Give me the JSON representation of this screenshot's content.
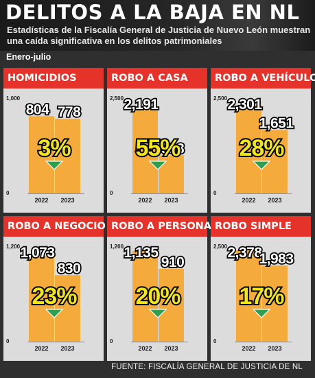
{
  "header": {
    "title": "DELITOS A LA BAJA EN NL",
    "subtitle": "Estadísticas de la Fiscalía General de Justicia de Nuevo León muestran una caída significativa en los delitos patrimoniales",
    "period": "Enero-julio"
  },
  "source": "FUENTE: FISCALÍA GENERAL DE JUSTICIA DE NL",
  "colors": {
    "bar": "#f5ab3c",
    "panel_header": "#e5322b",
    "arrow": "#2e9e4f",
    "panel_bg": "#dcdcdc"
  },
  "chart_data": [
    {
      "type": "bar",
      "title": "HOMICIDIOS",
      "categories": [
        "2022",
        "2023"
      ],
      "values": [
        804,
        778
      ],
      "value_labels": [
        "804",
        "778"
      ],
      "ylim": [
        0,
        1000
      ],
      "yticks": [
        "0",
        "1,000"
      ],
      "change_label": "3%",
      "change_direction": "down"
    },
    {
      "type": "bar",
      "title": "ROBO A CASA",
      "categories": [
        "2022",
        "2023"
      ],
      "values": [
        2191,
        993
      ],
      "value_labels": [
        "2,191",
        "993"
      ],
      "ylim": [
        0,
        2500
      ],
      "yticks": [
        "0",
        "2,500"
      ],
      "change_label": "55%",
      "change_direction": "down"
    },
    {
      "type": "bar",
      "title": "ROBO A VEHÍCULO",
      "categories": [
        "2022",
        "2023"
      ],
      "values": [
        2301,
        1651
      ],
      "value_labels": [
        "2,301",
        "1,651"
      ],
      "ylim": [
        0,
        2500
      ],
      "yticks": [
        "0",
        "2,500"
      ],
      "change_label": "28%",
      "change_direction": "down"
    },
    {
      "type": "bar",
      "title": "ROBO A NEGOCIO",
      "categories": [
        "2022",
        "2023"
      ],
      "values": [
        1073,
        830
      ],
      "value_labels": [
        "1,073",
        "830"
      ],
      "ylim": [
        0,
        1200
      ],
      "yticks": [
        "0",
        "1,200"
      ],
      "change_label": "23%",
      "change_direction": "down"
    },
    {
      "type": "bar",
      "title": "ROBO A PERSONA",
      "categories": [
        "2022",
        "2023"
      ],
      "values": [
        1135,
        910
      ],
      "value_labels": [
        "1,135",
        "910"
      ],
      "ylim": [
        0,
        1200
      ],
      "yticks": [
        "0",
        "1,200"
      ],
      "change_label": "20%",
      "change_direction": "down"
    },
    {
      "type": "bar",
      "title": "ROBO SIMPLE",
      "categories": [
        "2022",
        "2023"
      ],
      "values": [
        2378,
        1983
      ],
      "value_labels": [
        "2,378",
        "1,983"
      ],
      "ylim": [
        0,
        2500
      ],
      "yticks": [
        "0",
        "2,500"
      ],
      "change_label": "17%",
      "change_direction": "down"
    }
  ]
}
